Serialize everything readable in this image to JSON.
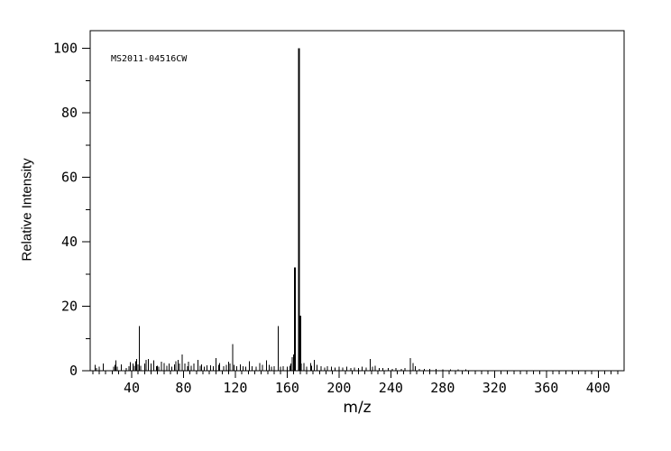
{
  "colors": {
    "background": "#ffffff",
    "foreground": "#000000"
  },
  "chart_data": {
    "type": "bar",
    "title": "MS2011-04516CW",
    "xlabel": "m/z",
    "ylabel": "Relative Intensity",
    "xlim": [
      8,
      420
    ],
    "ylim": [
      0,
      105.5
    ],
    "grid": false,
    "legend": "none",
    "x_major_ticks": [
      40,
      80,
      120,
      160,
      200,
      240,
      280,
      320,
      360,
      400
    ],
    "x_minor_tick_step": 5,
    "y_major_ticks": [
      0,
      20,
      40,
      60,
      80,
      100
    ],
    "y_minor_tick_step": 10,
    "bar_color": "#000000",
    "peaks": [
      [
        12,
        1.8
      ],
      [
        13,
        0.8
      ],
      [
        15,
        1.2
      ],
      [
        18,
        2.3
      ],
      [
        26,
        1.2
      ],
      [
        27,
        1.8
      ],
      [
        28,
        3.2
      ],
      [
        29,
        1.2
      ],
      [
        32,
        2.0
      ],
      [
        36,
        0.8
      ],
      [
        38,
        1.4
      ],
      [
        39,
        2.6
      ],
      [
        41,
        2.2
      ],
      [
        42,
        1.5
      ],
      [
        43,
        3.0
      ],
      [
        44,
        3.6
      ],
      [
        45,
        2.0
      ],
      [
        46,
        13.8
      ],
      [
        47,
        1.5
      ],
      [
        50,
        2.2
      ],
      [
        51,
        3.4
      ],
      [
        53,
        3.6
      ],
      [
        55,
        2.2
      ],
      [
        57,
        3.2
      ],
      [
        59,
        1.4
      ],
      [
        60,
        1.6
      ],
      [
        61,
        1.2
      ],
      [
        63,
        2.8
      ],
      [
        65,
        2.4
      ],
      [
        67,
        1.6
      ],
      [
        69,
        2.2
      ],
      [
        71,
        1.2
      ],
      [
        73,
        2.0
      ],
      [
        74,
        3.0
      ],
      [
        76,
        3.4
      ],
      [
        77,
        2.2
      ],
      [
        79,
        5.1
      ],
      [
        81,
        2.2
      ],
      [
        83,
        1.4
      ],
      [
        84,
        2.8
      ],
      [
        86,
        1.6
      ],
      [
        88,
        2.2
      ],
      [
        91,
        3.3
      ],
      [
        93,
        1.6
      ],
      [
        94,
        2.0
      ],
      [
        96,
        1.2
      ],
      [
        98,
        1.7
      ],
      [
        101,
        1.7
      ],
      [
        103,
        1.4
      ],
      [
        105,
        3.9
      ],
      [
        107,
        1.8
      ],
      [
        108,
        2.4
      ],
      [
        111,
        1.4
      ],
      [
        113,
        1.8
      ],
      [
        115,
        2.8
      ],
      [
        116,
        2.2
      ],
      [
        118,
        8.3
      ],
      [
        119,
        1.8
      ],
      [
        121,
        1.4
      ],
      [
        124,
        2.0
      ],
      [
        126,
        1.4
      ],
      [
        128,
        1.2
      ],
      [
        131,
        3.0
      ],
      [
        133,
        1.4
      ],
      [
        136,
        1.2
      ],
      [
        139,
        2.4
      ],
      [
        141,
        1.8
      ],
      [
        144,
        3.2
      ],
      [
        146,
        1.8
      ],
      [
        148,
        1.2
      ],
      [
        150,
        1.4
      ],
      [
        153,
        13.8
      ],
      [
        155,
        1.2
      ],
      [
        157,
        1.4
      ],
      [
        160,
        1.2
      ],
      [
        162,
        1.6
      ],
      [
        163,
        2.2
      ],
      [
        164,
        4.2
      ],
      [
        165,
        5.0
      ],
      [
        166,
        32
      ],
      [
        169,
        100
      ],
      [
        170,
        17
      ],
      [
        171,
        2.2
      ],
      [
        173,
        2.4
      ],
      [
        175,
        1.2
      ],
      [
        178,
        2.4
      ],
      [
        179,
        1.6
      ],
      [
        181,
        3.4
      ],
      [
        183,
        1.8
      ],
      [
        186,
        1.4
      ],
      [
        189,
        1.0
      ],
      [
        191,
        1.4
      ],
      [
        194,
        1.2
      ],
      [
        197,
        1.0
      ],
      [
        200,
        1.2
      ],
      [
        203,
        1.0
      ],
      [
        206,
        1.2
      ],
      [
        209,
        0.8
      ],
      [
        212,
        1.0
      ],
      [
        215,
        0.8
      ],
      [
        218,
        1.2
      ],
      [
        221,
        1.0
      ],
      [
        224,
        3.6
      ],
      [
        226,
        1.2
      ],
      [
        228,
        1.6
      ],
      [
        231,
        0.8
      ],
      [
        234,
        0.8
      ],
      [
        238,
        0.8
      ],
      [
        241,
        0.6
      ],
      [
        244,
        0.8
      ],
      [
        248,
        0.6
      ],
      [
        251,
        0.8
      ],
      [
        255,
        3.9
      ],
      [
        257,
        2.4
      ],
      [
        259,
        1.4
      ],
      [
        262,
        0.6
      ],
      [
        266,
        0.6
      ],
      [
        270,
        0.5
      ],
      [
        275,
        0.5
      ],
      [
        280,
        0.4
      ],
      [
        286,
        0.4
      ],
      [
        292,
        0.4
      ],
      [
        298,
        0.4
      ]
    ]
  }
}
